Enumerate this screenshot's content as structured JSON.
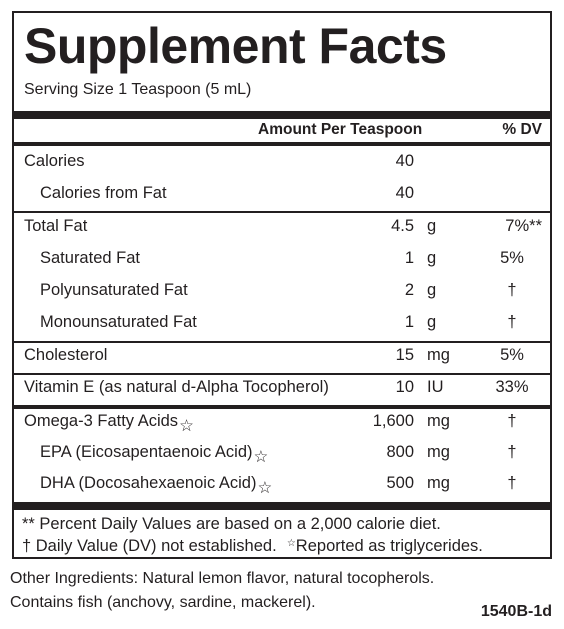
{
  "title": "Supplement Facts",
  "serving_size": "Serving Size 1 Teaspoon (5 mL)",
  "header": {
    "amount": "Amount Per Teaspoon",
    "dv": "% DV"
  },
  "rows": [
    {
      "label": "Calories",
      "amount": "40",
      "unit": "",
      "dv": ""
    },
    {
      "label": "Calories from Fat",
      "amount": "40",
      "unit": "",
      "dv": ""
    },
    {
      "label": "Total Fat",
      "amount": "4.5",
      "unit": "g",
      "dv": "7%**"
    },
    {
      "label": "Saturated Fat",
      "amount": "1",
      "unit": "g",
      "dv": "5%"
    },
    {
      "label": "Polyunsaturated Fat",
      "amount": "2",
      "unit": "g",
      "dv": "†"
    },
    {
      "label": "Monounsaturated Fat",
      "amount": "1",
      "unit": "g",
      "dv": "†"
    },
    {
      "label": "Cholesterol",
      "amount": "15",
      "unit": "mg",
      "dv": "5%"
    },
    {
      "label": "Vitamin E",
      "label_note": "(as natural d-Alpha Tocopherol)",
      "amount": "10",
      "unit": "IU",
      "dv": "33%"
    },
    {
      "label": "Omega-3 Fatty Acids",
      "mark": "☆",
      "amount": "1,600",
      "unit": "mg",
      "dv": "†"
    },
    {
      "label": "EPA",
      "label_note": "(Eicosapentaenoic Acid)",
      "mark": "☆",
      "amount": "800",
      "unit": "mg",
      "dv": "†"
    },
    {
      "label": "DHA",
      "label_note": "(Docosahexaenoic Acid)",
      "mark": "☆",
      "amount": "500",
      "unit": "mg",
      "dv": "†"
    }
  ],
  "footnotes": {
    "line1": "** Percent Daily Values are based on a 2,000 calorie diet.",
    "line2a": "† Daily Value (DV) not established.",
    "line2_mark": "☆",
    "line2b": "Reported as triglycerides."
  },
  "other_ingredients": {
    "line1": "Other Ingredients: Natural lemon flavor, natural tocopherols.",
    "line2": "Contains fish (anchovy, sardine, mackerel)."
  },
  "product_code": "1540B-1d"
}
